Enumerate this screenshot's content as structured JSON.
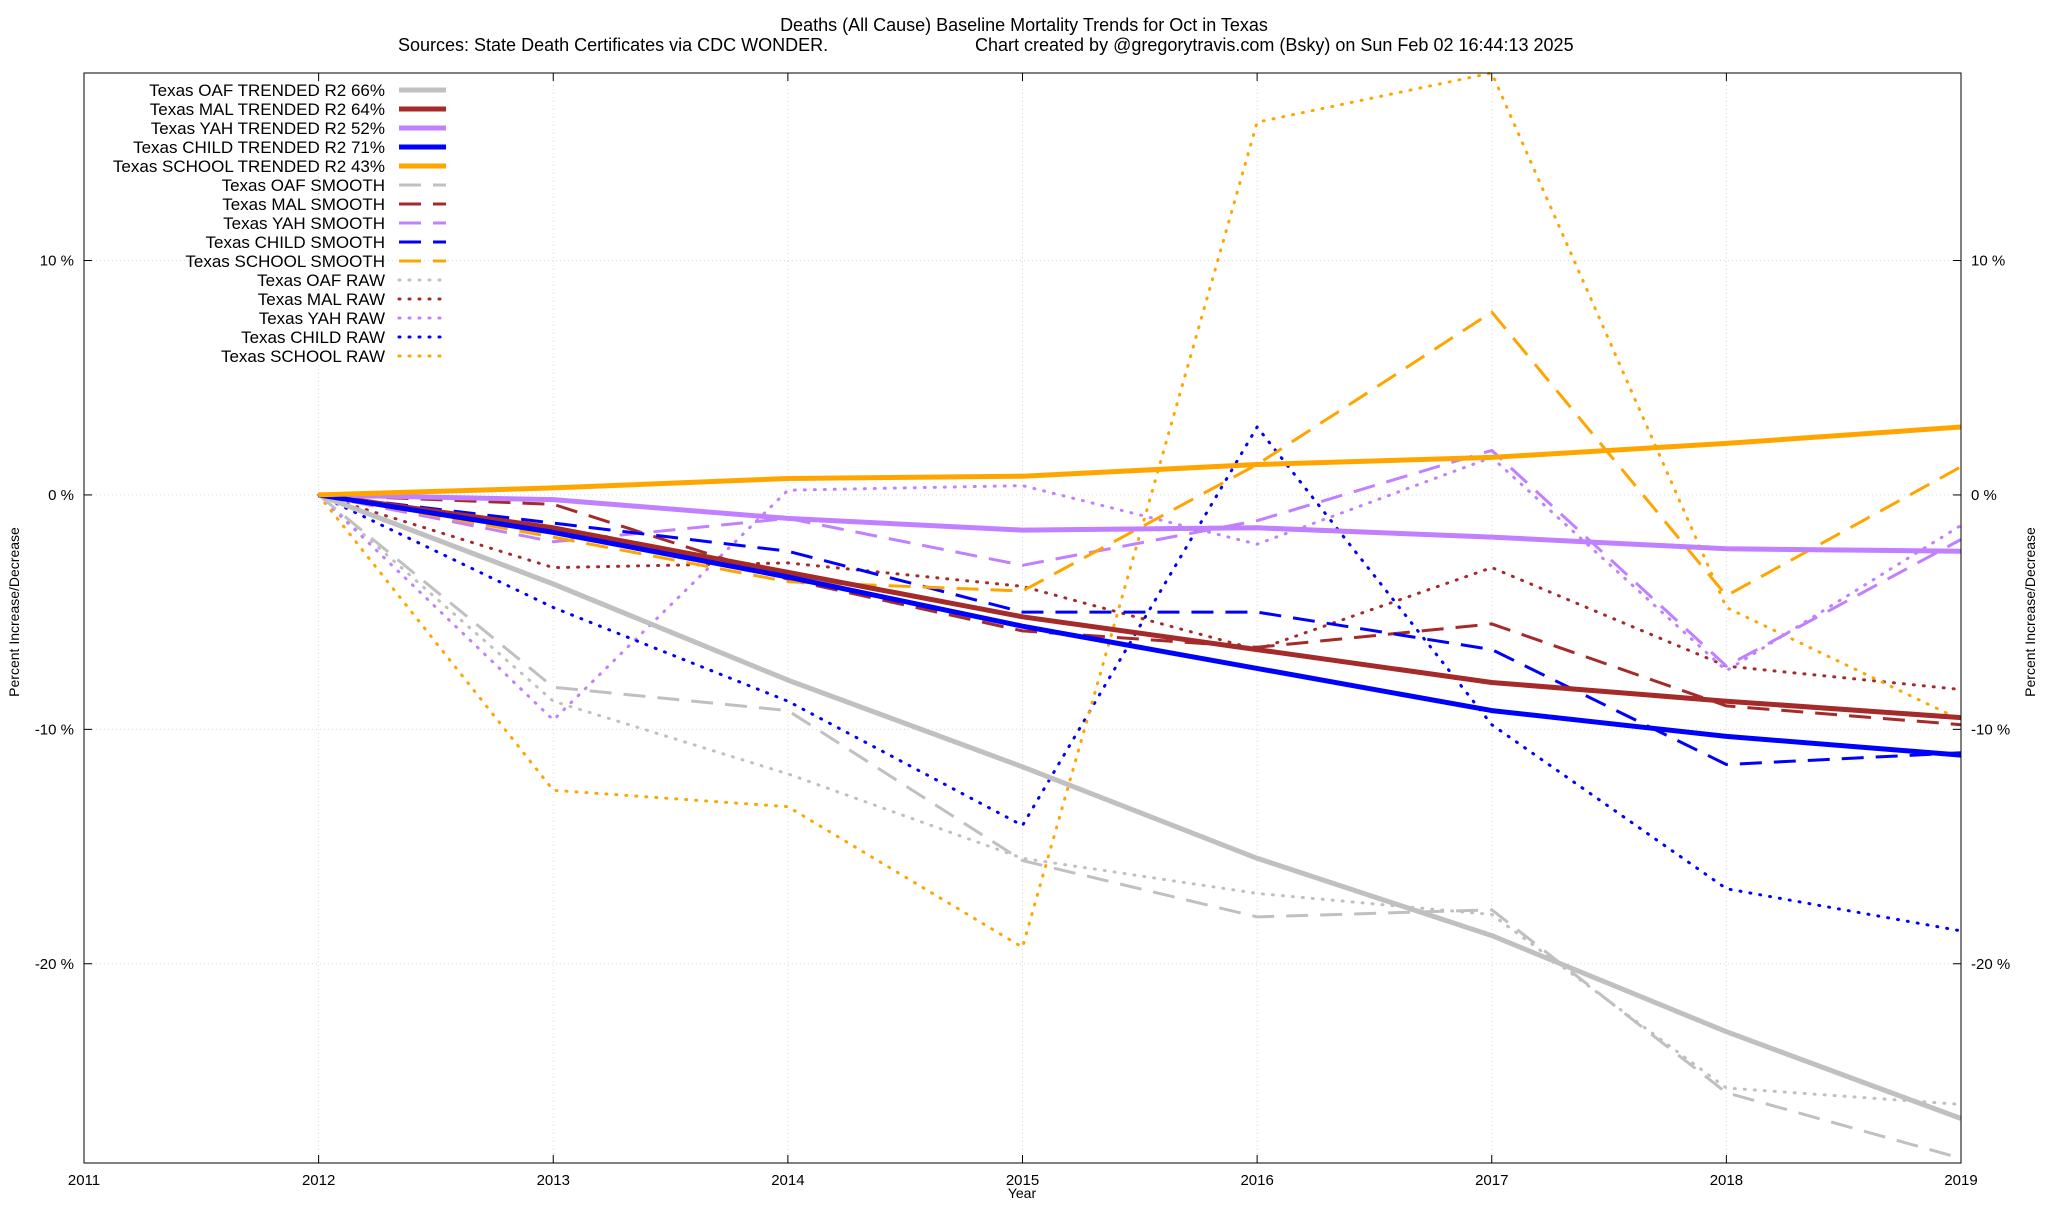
{
  "chart_data": {
    "type": "line",
    "title": "Deaths (All Cause)  Baseline Mortality Trends for Oct in Texas",
    "subtitle_left": "Sources: State Death Certificates via CDC WONDER.",
    "subtitle_right": "Chart created by @gregorytravis.com (Bsky) on Sun Feb 02 16:44:13 2025",
    "xlabel": "Year",
    "ylabel": "Percent Increase/Decrease",
    "xlim": [
      2011,
      2019
    ],
    "ylim": [
      -28.5,
      18
    ],
    "x_ticks": [
      "2011",
      "2012",
      "2013",
      "2014",
      "2015",
      "2016",
      "2017",
      "2018",
      "2019"
    ],
    "x_tick_values": [
      2011,
      2012,
      2013,
      2014,
      2015,
      2016,
      2017,
      2018,
      2019
    ],
    "y_ticks": [
      "10 %",
      "0 %",
      "-10 %",
      "-20 %"
    ],
    "y_tick_values": [
      10,
      0,
      -10,
      -20
    ],
    "grid": true,
    "legend_position": "top-left",
    "series": [
      {
        "name": "Texas OAF TRENDED R2  66%",
        "color": "#c0c0c0",
        "style": "solid",
        "x": [
          2012,
          2013,
          2014,
          2015,
          2016,
          2017,
          2018,
          2019
        ],
        "values": [
          0,
          -3.8,
          -7.9,
          -11.6,
          -15.5,
          -18.8,
          -22.9,
          -26.6
        ]
      },
      {
        "name": "Texas MAL TRENDED R2  64%",
        "color": "#a52a2a",
        "style": "solid",
        "x": [
          2012,
          2013,
          2014,
          2015,
          2016,
          2017,
          2018,
          2019
        ],
        "values": [
          0,
          -1.4,
          -3.3,
          -5.2,
          -6.6,
          -8.0,
          -8.8,
          -9.5
        ]
      },
      {
        "name": "Texas YAH TRENDED R2  52%",
        "color": "#c080ff",
        "style": "solid",
        "x": [
          2012,
          2013,
          2014,
          2015,
          2016,
          2017,
          2018,
          2019
        ],
        "values": [
          0,
          -0.2,
          -1.0,
          -1.5,
          -1.4,
          -1.8,
          -2.3,
          -2.4
        ]
      },
      {
        "name": "Texas CHILD TRENDED R2  71%",
        "color": "#0000ff",
        "style": "solid",
        "x": [
          2012,
          2013,
          2014,
          2015,
          2016,
          2017,
          2018,
          2019
        ],
        "values": [
          0,
          -1.6,
          -3.5,
          -5.6,
          -7.4,
          -9.2,
          -10.3,
          -11.1
        ]
      },
      {
        "name": "Texas SCHOOL TRENDED R2  43%",
        "color": "#ffa500",
        "style": "solid",
        "x": [
          2012,
          2013,
          2014,
          2015,
          2016,
          2017,
          2018,
          2019
        ],
        "values": [
          0,
          0.3,
          0.7,
          0.8,
          1.3,
          1.6,
          2.2,
          2.9
        ]
      },
      {
        "name": "Texas OAF SMOOTH",
        "color": "#c0c0c0",
        "style": "dashed",
        "x": [
          2012,
          2013,
          2014,
          2015,
          2016,
          2017,
          2018,
          2019
        ],
        "values": [
          0,
          -8.2,
          -9.2,
          -15.6,
          -18.0,
          -17.7,
          -25.5,
          -28.3
        ]
      },
      {
        "name": "Texas MAL SMOOTH",
        "color": "#a52a2a",
        "style": "dashed",
        "x": [
          2012,
          2013,
          2014,
          2015,
          2016,
          2017,
          2018,
          2019
        ],
        "values": [
          0,
          -0.4,
          -3.6,
          -5.8,
          -6.5,
          -5.5,
          -9.0,
          -9.8
        ]
      },
      {
        "name": "Texas YAH SMOOTH",
        "color": "#c080ff",
        "style": "dashed",
        "x": [
          2012,
          2013,
          2014,
          2015,
          2016,
          2017,
          2018,
          2019
        ],
        "values": [
          0,
          -2.0,
          -1.0,
          -3.0,
          -1.1,
          1.9,
          -7.3,
          -1.9
        ]
      },
      {
        "name": "Texas CHILD SMOOTH",
        "color": "#0000ff",
        "style": "dashed",
        "x": [
          2012,
          2013,
          2014,
          2015,
          2016,
          2017,
          2018,
          2019
        ],
        "values": [
          0,
          -1.2,
          -2.4,
          -5.0,
          -5.0,
          -6.6,
          -11.5,
          -11.0
        ]
      },
      {
        "name": "Texas SCHOOL SMOOTH",
        "color": "#ffa500",
        "style": "dashed",
        "x": [
          2012,
          2013,
          2014,
          2015,
          2016,
          2017,
          2018,
          2019
        ],
        "values": [
          0,
          -1.8,
          -3.7,
          -4.1,
          1.3,
          7.8,
          -4.3,
          1.2
        ]
      },
      {
        "name": "Texas OAF RAW",
        "color": "#c0c0c0",
        "style": "dotted",
        "x": [
          2012,
          2013,
          2014,
          2015,
          2016,
          2017,
          2018,
          2019
        ],
        "values": [
          0,
          -8.8,
          -11.9,
          -15.5,
          -17.0,
          -17.9,
          -25.3,
          -26.0
        ]
      },
      {
        "name": "Texas MAL RAW",
        "color": "#a52a2a",
        "style": "dotted",
        "x": [
          2012,
          2013,
          2014,
          2015,
          2016,
          2017,
          2018,
          2019
        ],
        "values": [
          0,
          -3.1,
          -2.9,
          -3.9,
          -6.6,
          -3.1,
          -7.3,
          -8.3
        ]
      },
      {
        "name": "Texas YAH RAW",
        "color": "#c080ff",
        "style": "dotted",
        "x": [
          2012,
          2013,
          2014,
          2015,
          2016,
          2017,
          2018,
          2019
        ],
        "values": [
          0,
          -9.6,
          0.2,
          0.4,
          -2.1,
          1.6,
          -7.5,
          -1.3
        ]
      },
      {
        "name": "Texas CHILD RAW",
        "color": "#0000ff",
        "style": "dotted",
        "x": [
          2012,
          2013,
          2014,
          2015,
          2016,
          2017,
          2018,
          2019
        ],
        "values": [
          0,
          -4.8,
          -8.8,
          -14.1,
          2.9,
          -9.8,
          -16.8,
          -18.6
        ]
      },
      {
        "name": "Texas SCHOOL RAW",
        "color": "#ffa500",
        "style": "dotted",
        "x": [
          2012,
          2013,
          2014,
          2015,
          2016,
          2017,
          2018,
          2019
        ],
        "values": [
          0,
          -12.6,
          -13.3,
          -19.3,
          15.9,
          18.0,
          -4.8,
          -9.6
        ]
      }
    ]
  }
}
